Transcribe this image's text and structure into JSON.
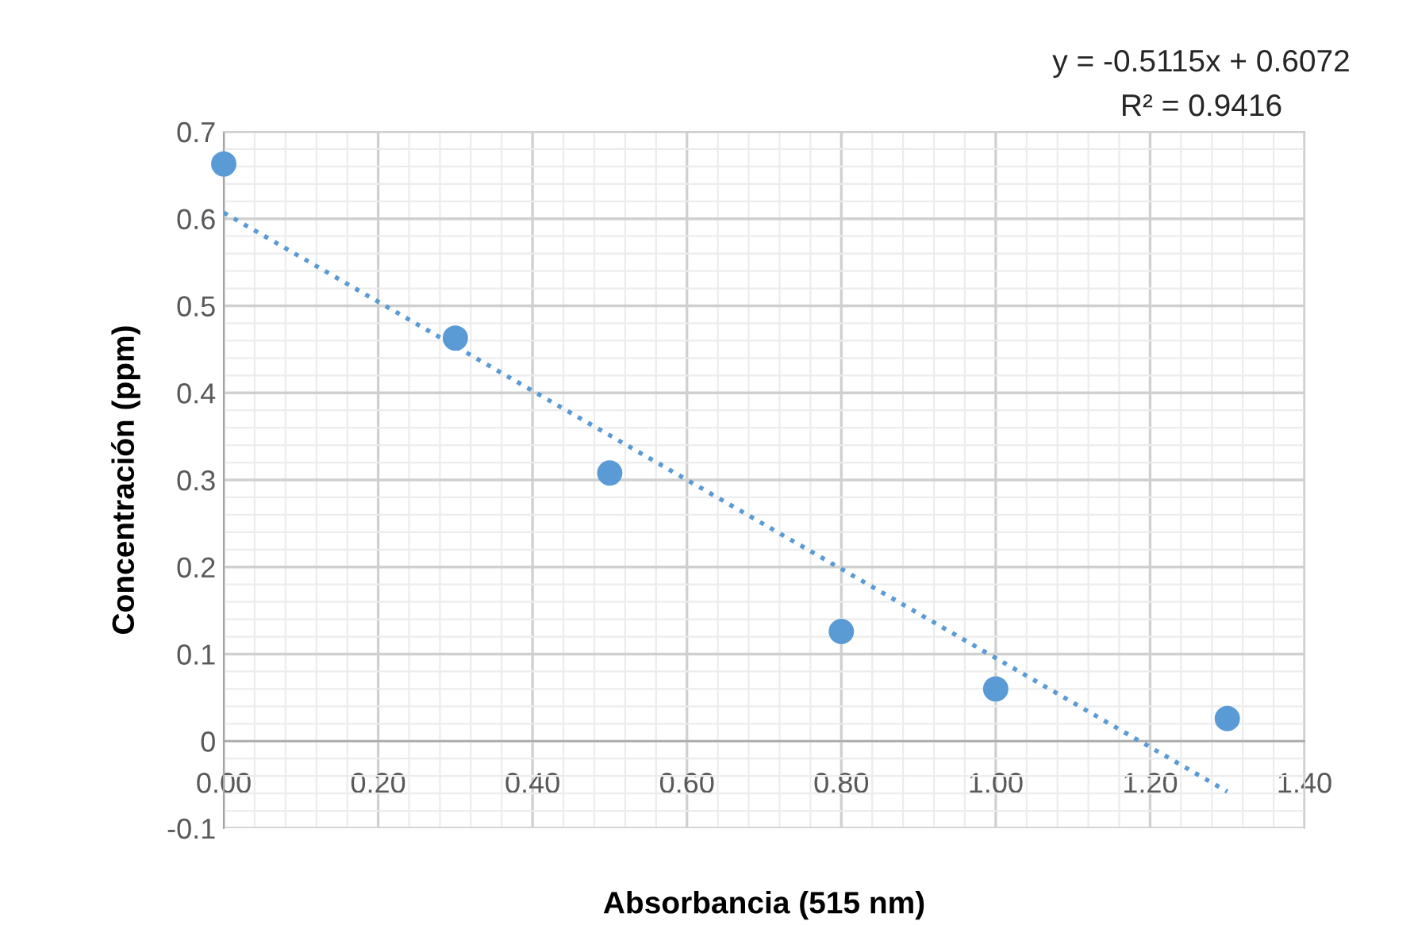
{
  "chart_data": {
    "type": "scatter",
    "xlabel": "Absorbancia (515 nm)",
    "ylabel": "Concentración (ppm)",
    "x": [
      0.0,
      0.3,
      0.5,
      0.8,
      1.0,
      1.3
    ],
    "series": [
      {
        "color": "#5b9bd5",
        "marker": "circle",
        "values": [
          0.663,
          0.463,
          0.308,
          0.126,
          0.06,
          0.026
        ]
      },
      {
        "type": "line",
        "color": "#5b9bd5",
        "line_style": "dotted",
        "marker": "none",
        "x": [
          0.0,
          1.3
        ],
        "values": [
          0.607,
          -0.058
        ]
      }
    ],
    "xlim": [
      0,
      1.4
    ],
    "xticks": [
      {
        "value": 0,
        "label": "0.00"
      },
      {
        "value": 0.2,
        "label": "0.20"
      },
      {
        "value": 0.4,
        "label": "0.40"
      },
      {
        "value": 0.6,
        "label": "0.60"
      },
      {
        "value": 0.8,
        "label": "0.80"
      },
      {
        "value": 1.0,
        "label": "1.00"
      },
      {
        "value": 1.2,
        "label": "1.20"
      },
      {
        "value": 1.4,
        "label": "1.40"
      }
    ],
    "ylim": [
      -0.1,
      0.7
    ],
    "yticks": [
      -0.1,
      0,
      0.1,
      0.2,
      0.3,
      0.4,
      0.5,
      0.6,
      0.7
    ],
    "grid": true,
    "legend": false,
    "annotations": [
      "y = -0.5115x + 0.6072",
      "R² = 0.9416"
    ]
  }
}
